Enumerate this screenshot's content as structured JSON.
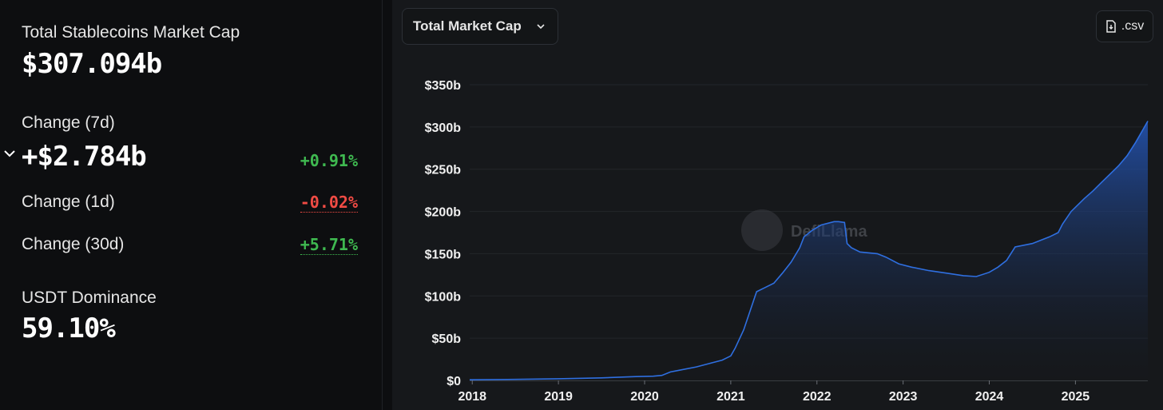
{
  "stats": {
    "total_label": "Total Stablecoins Market Cap",
    "total_value": "$307.094b",
    "change7d_label": "Change (7d)",
    "change7d_value": "+$2.784b",
    "change7d_pct": "+0.91%",
    "change1d_label": "Change (1d)",
    "change1d_pct": "-0.02%",
    "change30d_label": "Change (30d)",
    "change30d_pct": "+5.71%",
    "dominance_label": "USDT Dominance",
    "dominance_value": "59.10%"
  },
  "colors": {
    "positive": "#3fb950",
    "negative": "#f04b44",
    "line": "#2f6fe0",
    "area_top": "#2456b8"
  },
  "toolbar": {
    "dropdown_label": "Total Market Cap",
    "csv_label": ".csv"
  },
  "watermark": {
    "text": "DefiLlama"
  },
  "chart_data": {
    "type": "area",
    "yticks": [
      "$0",
      "$50b",
      "$100b",
      "$150b",
      "$200b",
      "$250b",
      "$300b",
      "$350b"
    ],
    "xticks": [
      "2018",
      "2019",
      "2020",
      "2021",
      "2022",
      "2023",
      "2024",
      "2025"
    ],
    "ylim": [
      0,
      350
    ],
    "xlim": [
      2017.97,
      2025.84
    ],
    "grid": true,
    "x": [
      2017.97,
      2018.5,
      2019.0,
      2019.5,
      2019.9,
      2020.1,
      2020.2,
      2020.3,
      2020.4,
      2020.6,
      2020.75,
      2020.9,
      2021.0,
      2021.05,
      2021.15,
      2021.3,
      2021.4,
      2021.5,
      2021.6,
      2021.7,
      2021.8,
      2021.85,
      2021.95,
      2022.05,
      2022.2,
      2022.25,
      2022.32,
      2022.35,
      2022.4,
      2022.5,
      2022.7,
      2022.8,
      2022.95,
      2023.1,
      2023.3,
      2023.5,
      2023.7,
      2023.85,
      2024.0,
      2024.1,
      2024.2,
      2024.3,
      2024.5,
      2024.6,
      2024.7,
      2024.8,
      2024.85,
      2024.95,
      2025.0,
      2025.1,
      2025.2,
      2025.3,
      2025.4,
      2025.5,
      2025.6,
      2025.7,
      2025.84
    ],
    "values": [
      0.8,
      1.2,
      2.0,
      3.0,
      4.5,
      5.0,
      6.0,
      10.0,
      12.0,
      16.0,
      20.0,
      24.0,
      29.0,
      38.0,
      60.0,
      105.0,
      110.0,
      115.0,
      127.0,
      140.0,
      157.0,
      170.0,
      178.0,
      184.0,
      188.0,
      188.0,
      187.0,
      162.0,
      157.0,
      152.0,
      150.0,
      146.0,
      138.0,
      134.0,
      130.0,
      127.0,
      124.0,
      123.0,
      128.0,
      134.0,
      142.0,
      158.0,
      162.0,
      166.0,
      170.0,
      175.0,
      185.0,
      200.0,
      205.0,
      215.0,
      224.0,
      234.0,
      244.0,
      254.0,
      266.0,
      282.0,
      307.0
    ]
  }
}
